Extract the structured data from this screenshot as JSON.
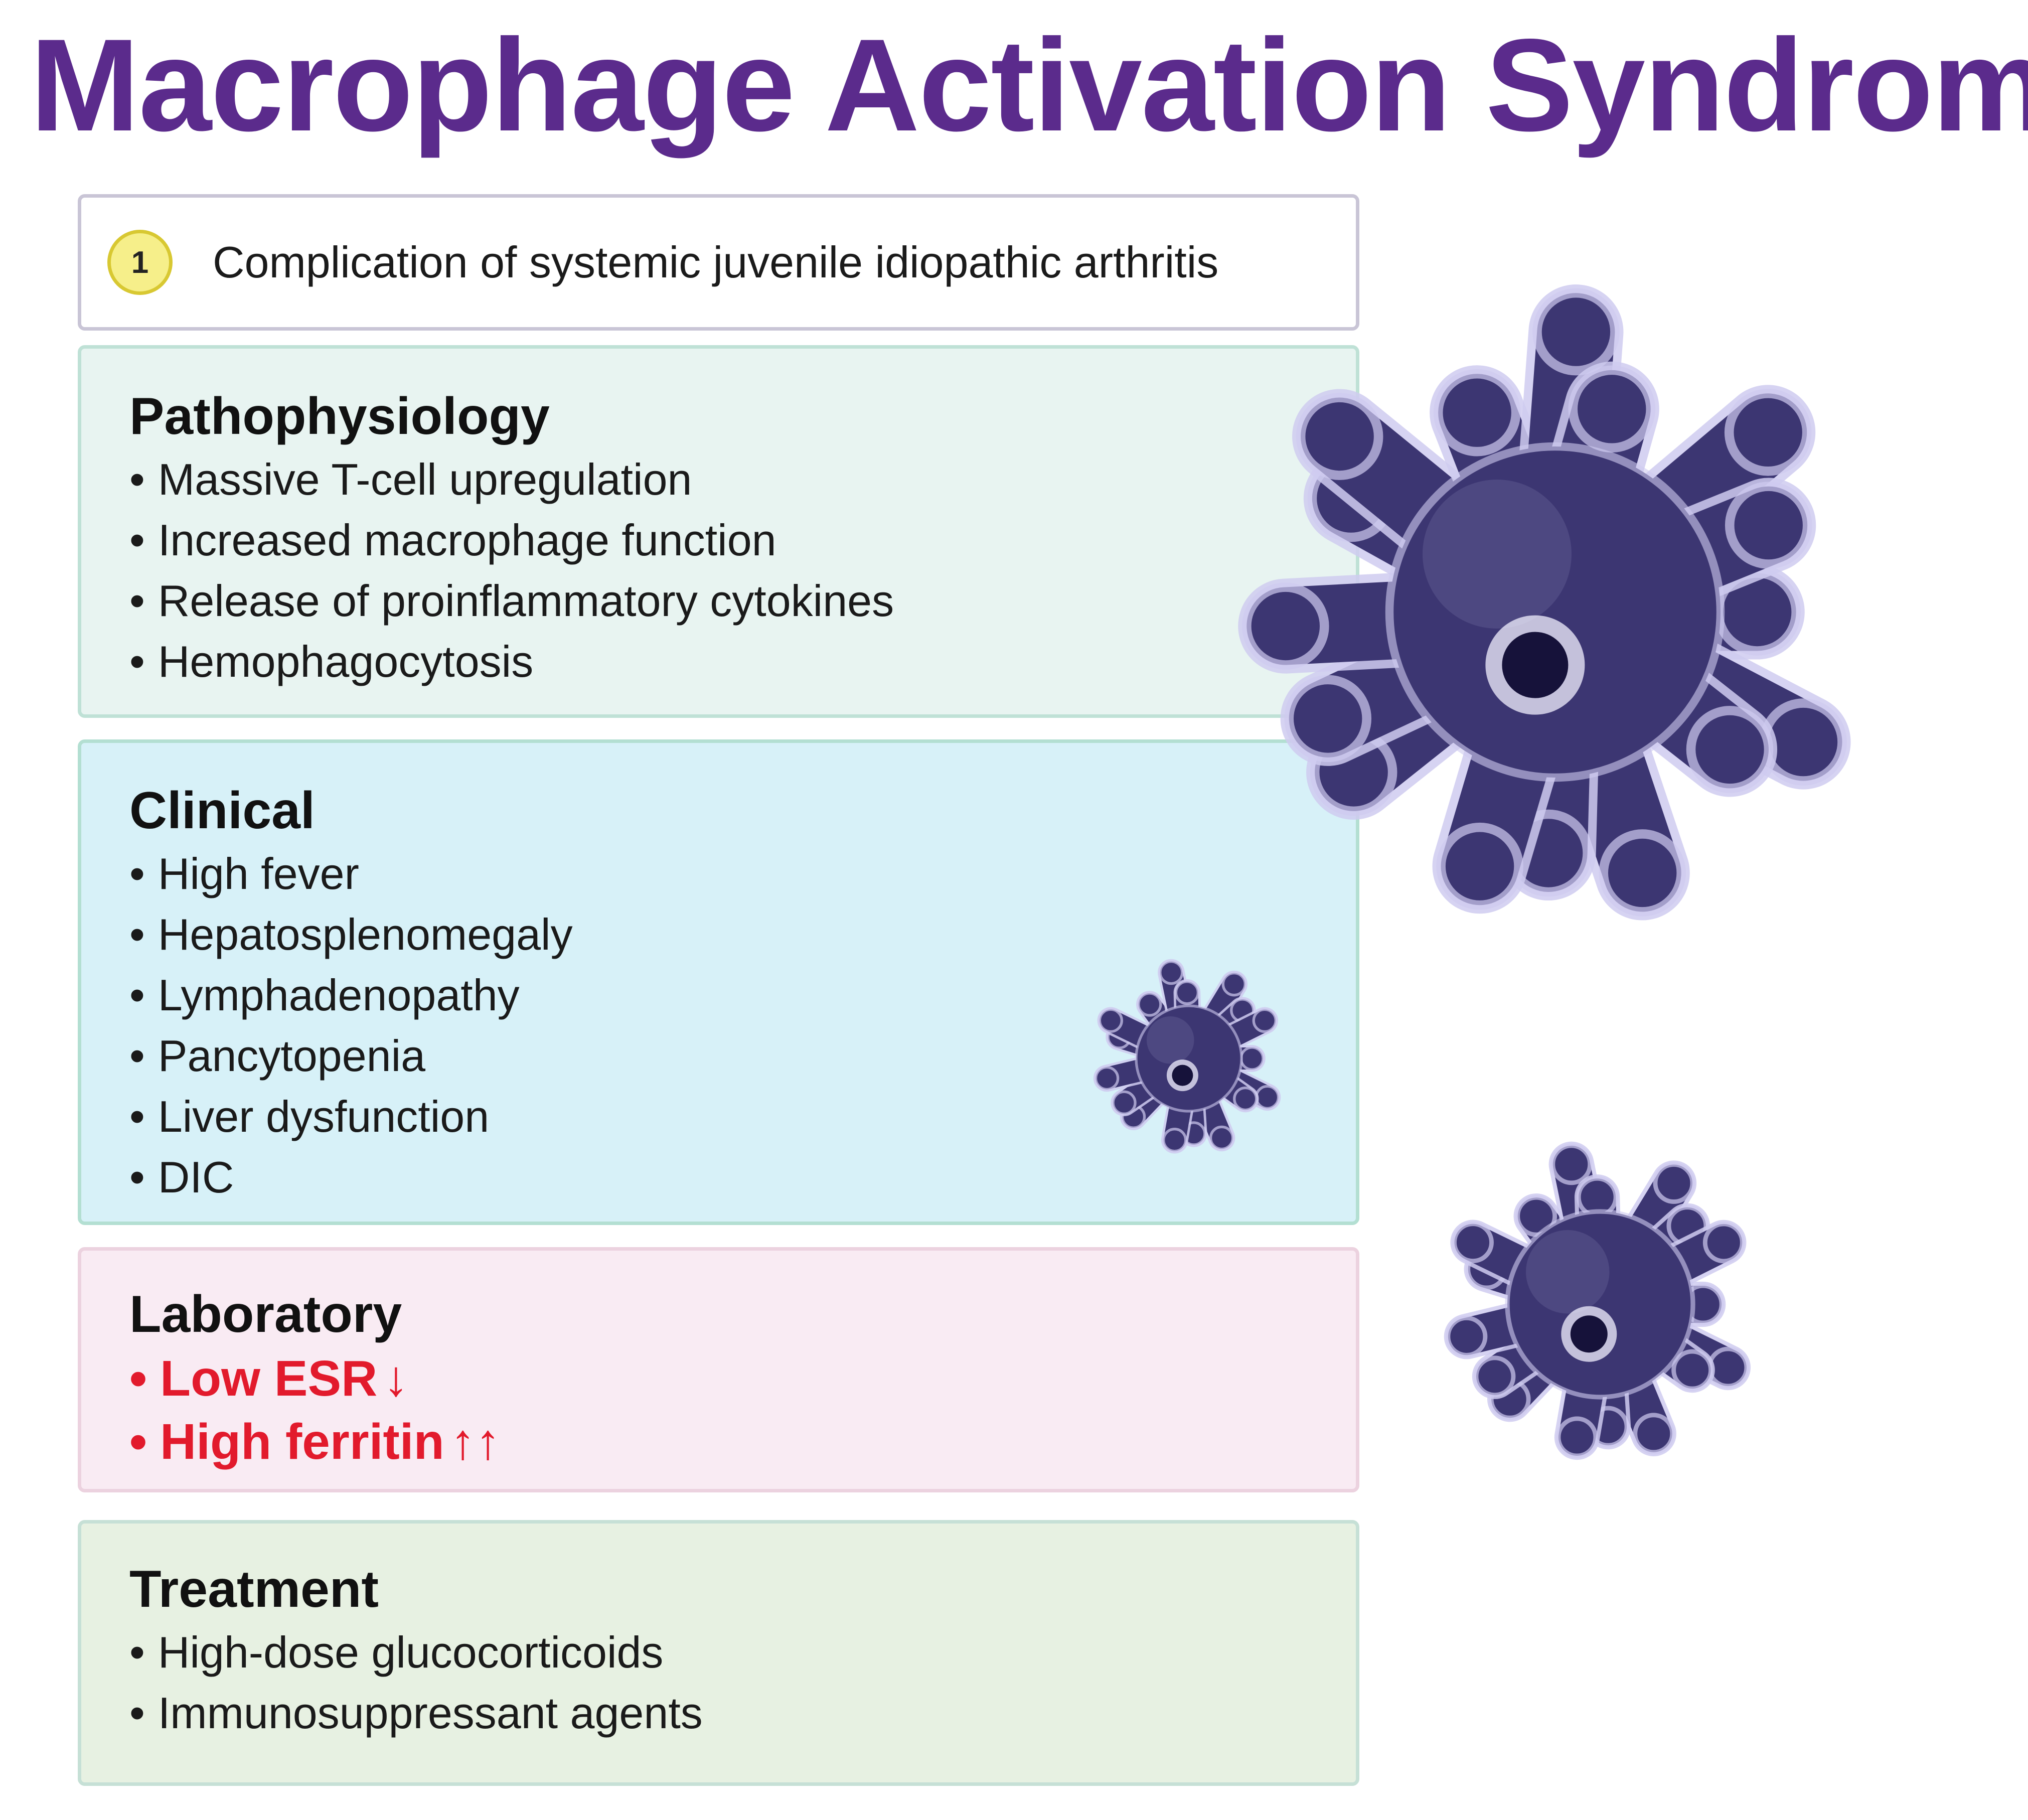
{
  "title": "Macrophage Activation Syndrome",
  "colors": {
    "title": "#5b2b8c",
    "alert_red": "#e21a2c",
    "macrophage_fill": "#3c3672",
    "macrophage_highlight": "#cfcbf0"
  },
  "intro": {
    "number": "1",
    "text": "Complication of systemic juvenile idiopathic arthritis",
    "border": "#c9c5d6",
    "badge_fill": "#f6ef8a",
    "badge_border": "#d8c832"
  },
  "sections": [
    {
      "id": "pathophysiology",
      "heading": "Pathophysiology",
      "bg": "#e8f4f1",
      "border": "#bfe1d6",
      "items": [
        {
          "text": "Massive T-cell upregulation"
        },
        {
          "text": "Increased macrophage function"
        },
        {
          "text": "Release of proinflammatory cytokines"
        },
        {
          "text": "Hemophagocytosis"
        }
      ]
    },
    {
      "id": "clinical",
      "heading": "Clinical",
      "bg": "#d7f1f8",
      "border": "#b3dfd2",
      "items": [
        {
          "text": "High fever"
        },
        {
          "text": "Hepatosplenomegaly"
        },
        {
          "text": "Lymphadenopathy"
        },
        {
          "text": "Pancytopenia"
        },
        {
          "text": "Liver dysfunction"
        },
        {
          "text": "DIC"
        }
      ]
    },
    {
      "id": "laboratory",
      "heading": "Laboratory",
      "bg": "#f9ebf3",
      "border": "#ecd2df",
      "items": [
        {
          "text": "Low ESR",
          "arrow": "↓"
        },
        {
          "text": "High ferritin",
          "arrow": "↑↑"
        }
      ]
    },
    {
      "id": "treatment",
      "heading": "Treatment",
      "bg": "#e7f1e2",
      "border": "#c6e0d6",
      "items": [
        {
          "text": "High-dose glucocorticoids"
        },
        {
          "text": "Immunosuppressant agents"
        }
      ]
    }
  ],
  "illustrations": [
    {
      "name": "macrophage-large-illustration",
      "icon": "macrophage-icon"
    },
    {
      "name": "macrophage-small-illustration",
      "icon": "macrophage-icon"
    },
    {
      "name": "macrophage-medium-illustration",
      "icon": "macrophage-icon"
    }
  ]
}
